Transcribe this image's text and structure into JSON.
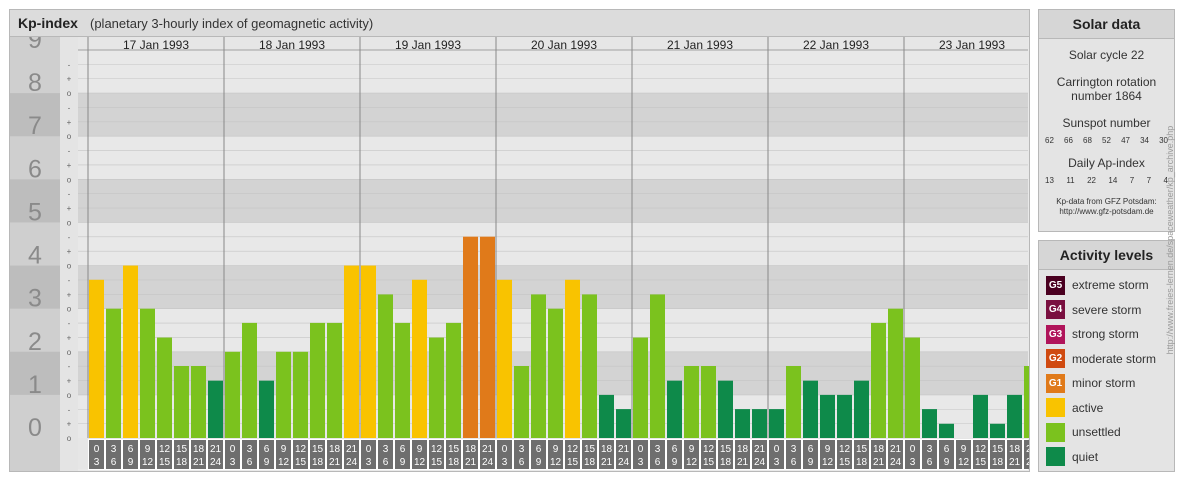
{
  "title": "Kp-index",
  "subtitle": "(planetary 3-hourly index of geomagnetic activity)",
  "chart_data": {
    "type": "bar",
    "title": "Kp-index",
    "subtitle": "(planetary 3-hourly index of geomagnetic activity)",
    "y_ticks": [
      "0",
      "1",
      "2",
      "3",
      "4",
      "5",
      "6",
      "7",
      "8",
      "9"
    ],
    "minor_ticks": [
      "o",
      "+",
      "-"
    ],
    "ylim": [
      0,
      9
    ],
    "dates": [
      "17 Jan 1993",
      "18 Jan 1993",
      "19 Jan 1993",
      "20 Jan 1993",
      "21 Jan 1993",
      "22 Jan 1993",
      "23 Jan 1993"
    ],
    "interval_labels": [
      [
        "0",
        "3"
      ],
      [
        "3",
        "6"
      ],
      [
        "6",
        "9"
      ],
      [
        "9",
        "12"
      ],
      [
        "12",
        "15"
      ],
      [
        "15",
        "18"
      ],
      [
        "18",
        "21"
      ],
      [
        "21",
        "24"
      ]
    ],
    "values": [
      [
        3.67,
        3.0,
        4.0,
        3.0,
        2.33,
        1.67,
        1.67,
        1.33
      ],
      [
        2.0,
        2.67,
        1.33,
        2.0,
        2.0,
        2.67,
        2.67,
        4.0
      ],
      [
        4.0,
        3.33,
        2.67,
        3.67,
        2.33,
        2.67,
        4.67,
        4.67
      ],
      [
        3.67,
        1.67,
        3.33,
        3.0,
        3.67,
        3.33,
        1.0,
        0.67
      ],
      [
        2.33,
        3.33,
        1.33,
        1.67,
        1.67,
        1.33,
        0.67,
        0.67
      ],
      [
        0.67,
        1.67,
        1.33,
        1.0,
        1.0,
        1.33,
        2.67,
        3.0
      ],
      [
        2.33,
        0.67,
        0.33,
        0.0,
        1.0,
        0.33,
        1.0,
        1.67
      ]
    ],
    "level_colors": {
      "quiet": "#0e8a4a",
      "unsettled": "#7bc21e",
      "active": "#f9c300",
      "G1": "#e07a1a",
      "G2": "#d04a10",
      "G3": "#b0145a",
      "G4": "#7a1040",
      "G5": "#4a0020"
    },
    "grid": true
  },
  "solar": {
    "title": "Solar data",
    "cycle": "Solar cycle 22",
    "carrington_line1": "Carrington rotation",
    "carrington_line2": "number 1864",
    "sunspot_title": "Sunspot number",
    "sunspot_values": [
      "62",
      "66",
      "68",
      "52",
      "47",
      "34",
      "30"
    ],
    "ap_title": "Daily Ap-index",
    "ap_values": [
      "13",
      "11",
      "22",
      "14",
      "7",
      "7",
      "4"
    ],
    "source_line1": "Kp-data from GFZ Potsdam:",
    "source_line2": "http://www.gfz-potsdam.de"
  },
  "activity": {
    "title": "Activity levels",
    "items": [
      {
        "code": "G5",
        "label": "extreme storm",
        "color": "#4a0020"
      },
      {
        "code": "G4",
        "label": "severe storm",
        "color": "#7a1040"
      },
      {
        "code": "G3",
        "label": "strong storm",
        "color": "#b0145a"
      },
      {
        "code": "G2",
        "label": "moderate storm",
        "color": "#d04a10"
      },
      {
        "code": "G1",
        "label": "minor storm",
        "color": "#e07a1a"
      },
      {
        "code": "",
        "label": "active",
        "color": "#f9c300"
      },
      {
        "code": "",
        "label": "unsettled",
        "color": "#7bc21e"
      },
      {
        "code": "",
        "label": "quiet",
        "color": "#0e8a4a"
      }
    ]
  },
  "credit": "http://www.freies-lernen.de/spaceweather/kp_archive.php"
}
